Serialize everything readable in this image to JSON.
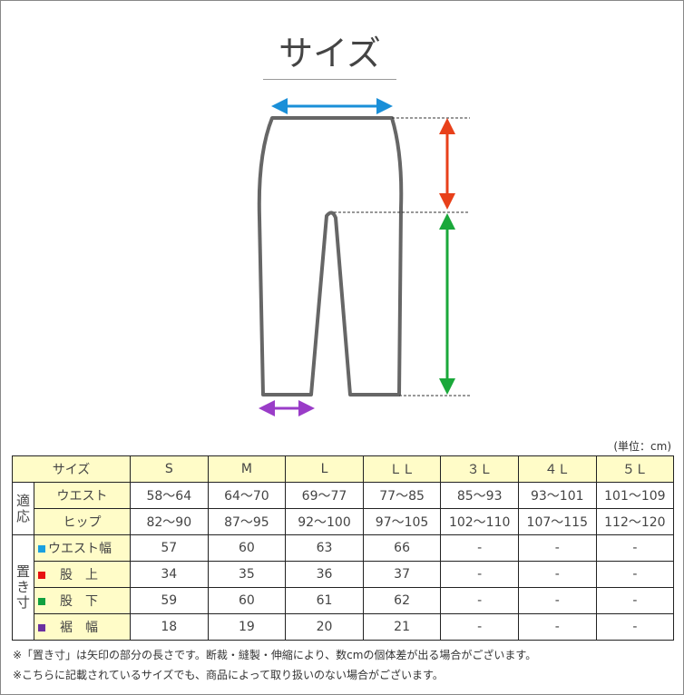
{
  "title": "サイズ",
  "unit_label": "(単位：cm)",
  "colors": {
    "waist": "#1a8fd8",
    "rise": "#e8401a",
    "inseam": "#1aa83a",
    "hem": "#9a3cc8",
    "header_bg": "#fffcc8",
    "outline": "#666666"
  },
  "table": {
    "corner": "サイズ",
    "sizes": [
      "S",
      "M",
      "L",
      "ＬＬ",
      "３Ｌ",
      "４Ｌ",
      "５Ｌ"
    ],
    "group_fit": "適応",
    "group_flat": "置き寸",
    "rows": [
      {
        "label": "ウエスト",
        "values": [
          "58～64",
          "64～70",
          "69～77",
          "77～85",
          "85～93",
          "93～101",
          "101～109"
        ]
      },
      {
        "label": "ヒップ",
        "values": [
          "82～90",
          "87～95",
          "92～100",
          "97～105",
          "102～110",
          "107～115",
          "112～120"
        ]
      },
      {
        "label": "ウエスト幅",
        "marker": "#1aa0e0",
        "values": [
          "57",
          "60",
          "63",
          "66",
          "-",
          "-",
          "-"
        ]
      },
      {
        "label": "股　上",
        "marker": "#e81010",
        "values": [
          "34",
          "35",
          "36",
          "37",
          "-",
          "-",
          "-"
        ]
      },
      {
        "label": "股　下",
        "marker": "#10a040",
        "values": [
          "59",
          "60",
          "61",
          "62",
          "-",
          "-",
          "-"
        ]
      },
      {
        "label": "裾　幅",
        "marker": "#6a30a0",
        "values": [
          "18",
          "19",
          "20",
          "21",
          "-",
          "-",
          "-"
        ]
      }
    ]
  },
  "notes": [
    "※「置き寸」は矢印の部分の長さです。断裁・縫製・伸縮により、数cmの個体差が出る場合がございます。",
    "※こちらに記載されているサイズでも、商品によって取り扱いのない場合がございます。"
  ]
}
